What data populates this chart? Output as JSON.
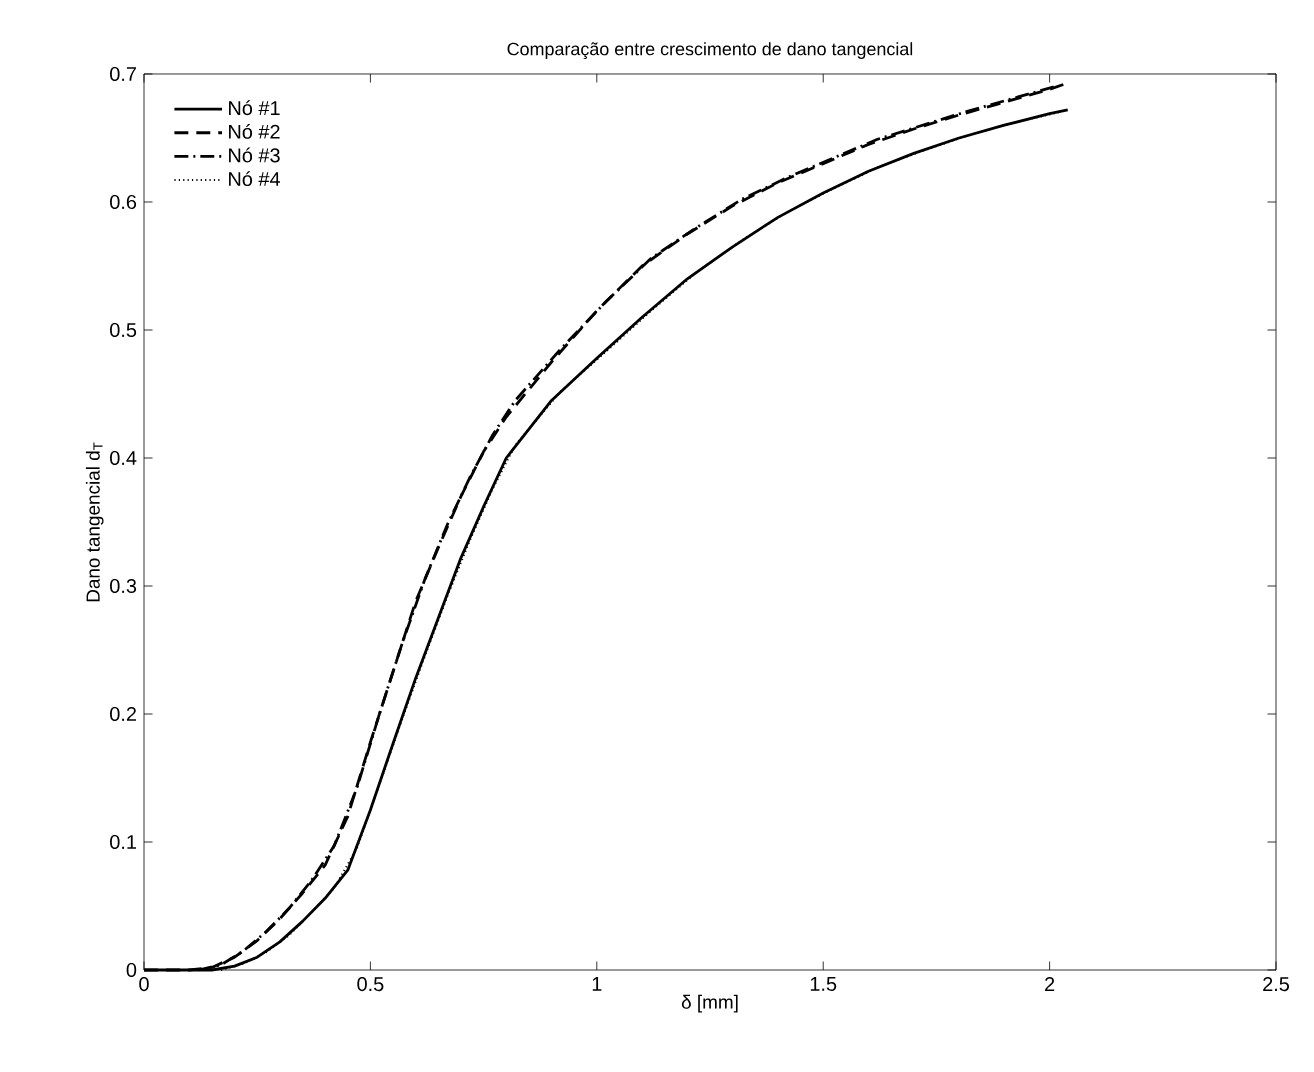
{
  "chart_data": {
    "type": "line",
    "title": "Comparação entre crescimento de dano tangencial",
    "xlabel": "δ [mm]",
    "ylabel": "Dano tangencial d$_{T}$",
    "xlim": [
      0,
      2.5
    ],
    "xticks": [
      0,
      0.5,
      1,
      1.5,
      2,
      2.5
    ],
    "ylim": [
      0,
      0.7
    ],
    "yticks": [
      0,
      0.1,
      0.2,
      0.3,
      0.4,
      0.5,
      0.6,
      0.7
    ],
    "grid": false,
    "legend": "top left",
    "marker": "none",
    "series": [
      {
        "name": "Nó #1",
        "color": "#000000",
        "line_style": "solid",
        "x": [
          0,
          0.1,
          0.15,
          0.2,
          0.25,
          0.3,
          0.35,
          0.4,
          0.45,
          0.5,
          0.55,
          0.6,
          0.65,
          0.7,
          0.75,
          0.8,
          0.9,
          1.0,
          1.1,
          1.2,
          1.3,
          1.4,
          1.5,
          1.6,
          1.7,
          1.8,
          1.9,
          2.0,
          2.04
        ],
        "values": [
          0,
          0,
          0,
          0.003,
          0.01,
          0.022,
          0.038,
          0.056,
          0.078,
          0.125,
          0.177,
          0.228,
          0.275,
          0.322,
          0.362,
          0.4,
          0.445,
          0.478,
          0.51,
          0.54,
          0.565,
          0.588,
          0.607,
          0.624,
          0.638,
          0.65,
          0.66,
          0.669,
          0.672
        ]
      },
      {
        "name": "Nó #2",
        "color": "#000000",
        "line_style": "dashed",
        "x": [
          0,
          0.1,
          0.15,
          0.2,
          0.25,
          0.3,
          0.35,
          0.4,
          0.45,
          0.5,
          0.55,
          0.6,
          0.65,
          0.7,
          0.75,
          0.8,
          0.9,
          1.0,
          1.1,
          1.2,
          1.3,
          1.4,
          1.5,
          1.6,
          1.7,
          1.8,
          1.9,
          2.0,
          2.04
        ],
        "values": [
          0,
          0,
          0.002,
          0.01,
          0.023,
          0.04,
          0.06,
          0.082,
          0.12,
          0.178,
          0.233,
          0.288,
          0.33,
          0.37,
          0.405,
          0.432,
          0.475,
          0.515,
          0.55,
          0.575,
          0.597,
          0.615,
          0.63,
          0.645,
          0.657,
          0.668,
          0.678,
          0.688,
          0.693
        ]
      },
      {
        "name": "Nó #3",
        "color": "#000000",
        "line_style": "dashdot",
        "x": [
          0.12,
          0.17,
          0.22,
          0.27,
          0.32,
          0.37,
          0.42,
          0.47,
          0.52,
          0.57,
          0.62,
          0.67,
          0.72,
          0.77,
          0.82,
          0.92,
          1.02,
          1.12,
          1.22,
          1.32,
          1.42,
          1.52,
          1.62,
          1.72,
          1.82,
          1.92,
          2.02
        ],
        "values": [
          0,
          0.004,
          0.015,
          0.03,
          0.048,
          0.07,
          0.097,
          0.142,
          0.2,
          0.255,
          0.305,
          0.348,
          0.385,
          0.418,
          0.445,
          0.485,
          0.522,
          0.556,
          0.58,
          0.602,
          0.619,
          0.634,
          0.649,
          0.66,
          0.671,
          0.681,
          0.691
        ]
      },
      {
        "name": "Nó #4",
        "color": "#000000",
        "line_style": "dotted",
        "x": [
          0.17,
          0.22,
          0.27,
          0.32,
          0.37,
          0.42,
          0.47,
          0.52,
          0.57,
          0.62,
          0.67,
          0.72,
          0.77,
          0.82,
          0.92,
          1.02,
          1.12,
          1.22,
          1.32,
          1.42,
          1.52,
          1.62,
          1.72,
          1.82,
          1.92,
          2.02
        ],
        "values": [
          0,
          0.005,
          0.014,
          0.027,
          0.045,
          0.064,
          0.095,
          0.145,
          0.196,
          0.245,
          0.292,
          0.336,
          0.376,
          0.41,
          0.452,
          0.483,
          0.515,
          0.545,
          0.57,
          0.592,
          0.61,
          0.627,
          0.64,
          0.652,
          0.662,
          0.67
        ]
      }
    ]
  }
}
